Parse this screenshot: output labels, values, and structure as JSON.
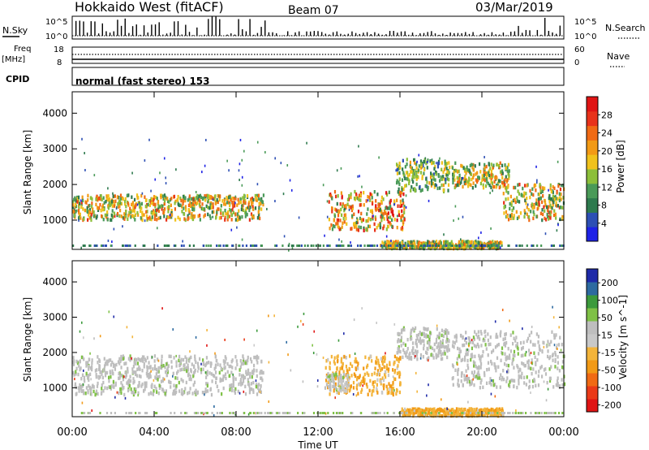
{
  "header": {
    "title": "Hokkaido West (fitACF)",
    "beam": "Beam 07",
    "date": "03/Mar/2019"
  },
  "noise_panel": {
    "left_label": "N.Sky",
    "right_label": "N.Search",
    "left_ticks": [
      "10^5",
      "10^0"
    ],
    "right_ticks": [
      "10^5",
      "10^0"
    ]
  },
  "freq_panel": {
    "left_label_line1": "Freq",
    "left_label_line2": "[MHz]",
    "right_label": "Nave",
    "left_ticks": [
      "18",
      "8"
    ],
    "right_ticks": [
      "60",
      "0"
    ]
  },
  "cpid_panel": {
    "label": "CPID",
    "text": "normal (fast stereo) 153"
  },
  "x_axis": {
    "title": "Time UT",
    "ticks": [
      "00:00",
      "04:00",
      "08:00",
      "12:00",
      "16:00",
      "20:00",
      "00:00"
    ]
  },
  "colors": {
    "power_scale": [
      "#1e22e6",
      "#2d4fb4",
      "#2e7a4e",
      "#4a9a58",
      "#8cbf3a",
      "#f0c21c",
      "#f29a16",
      "#f06a14",
      "#e8321a",
      "#e01414"
    ],
    "velocity_scale": [
      "#e01414",
      "#ea3a18",
      "#f06a14",
      "#f29a16",
      "#f3b43a",
      "#c8c8c8",
      "#bebebe",
      "#7fc146",
      "#3c9a3c",
      "#2d6aa0",
      "#1e2aa8"
    ],
    "ground_scatter": "#bebebe"
  },
  "chart_data": [
    {
      "type": "heatmap",
      "name": "Power",
      "ylabel": "Slant Range [km]",
      "xlabel": "",
      "yticks": [
        "1000",
        "2000",
        "3000",
        "4000"
      ],
      "ylim": [
        180,
        4600
      ],
      "xlim_hours": [
        0,
        24
      ],
      "colorbar": {
        "label": "Power [dB]",
        "ticks": [
          "4",
          "8",
          "12",
          "16",
          "20",
          "24",
          "28"
        ],
        "range": [
          0,
          30
        ]
      },
      "features": [
        {
          "t_start": 0.0,
          "t_end": 9.3,
          "range_start": 1000,
          "range_end": 1700,
          "peak_power": 24
        },
        {
          "t_start": 12.5,
          "t_end": 16.2,
          "range_start": 700,
          "range_end": 1800,
          "peak_power": 28
        },
        {
          "t_start": 15.8,
          "t_end": 18.4,
          "range_start": 1800,
          "range_end": 2700,
          "peak_power": 18
        },
        {
          "t_start": 18.5,
          "t_end": 21.3,
          "range_start": 1900,
          "range_end": 2600,
          "peak_power": 22
        },
        {
          "t_start": 21.0,
          "t_end": 24.0,
          "range_start": 1000,
          "range_end": 2000,
          "peak_power": 24
        },
        {
          "t_start": 15.0,
          "t_end": 21.0,
          "range_start": 200,
          "range_end": 400,
          "peak_power": 22
        }
      ]
    },
    {
      "type": "heatmap",
      "name": "Velocity",
      "ylabel": "Slant Range [km]",
      "xlabel": "Time UT",
      "yticks": [
        "1000",
        "2000",
        "3000",
        "4000"
      ],
      "ylim": [
        180,
        4600
      ],
      "xlim_hours": [
        0,
        24
      ],
      "colorbar": {
        "label": "Velocity [m s^-1]",
        "ticks": [
          "200",
          "100",
          "50",
          "15",
          "-15",
          "-50",
          "-100",
          "-200"
        ],
        "range": [
          -250,
          250
        ]
      },
      "features": [
        {
          "t_start": 0.0,
          "t_end": 9.3,
          "range_start": 800,
          "range_end": 1900,
          "velocity": 0,
          "ground_scatter": true
        },
        {
          "t_start": 12.3,
          "t_end": 16.0,
          "range_start": 800,
          "range_end": 1900,
          "velocity": -60
        },
        {
          "t_start": 12.3,
          "t_end": 13.5,
          "range_start": 900,
          "range_end": 1400,
          "velocity": 40
        },
        {
          "t_start": 15.8,
          "t_end": 18.4,
          "range_start": 1800,
          "range_end": 2700,
          "velocity": 0,
          "ground_scatter": true
        },
        {
          "t_start": 18.5,
          "t_end": 24.0,
          "range_start": 1000,
          "range_end": 2600,
          "velocity": 0,
          "ground_scatter": true
        },
        {
          "t_start": 16.0,
          "t_end": 21.0,
          "range_start": 200,
          "range_end": 400,
          "velocity": -60
        }
      ]
    }
  ]
}
